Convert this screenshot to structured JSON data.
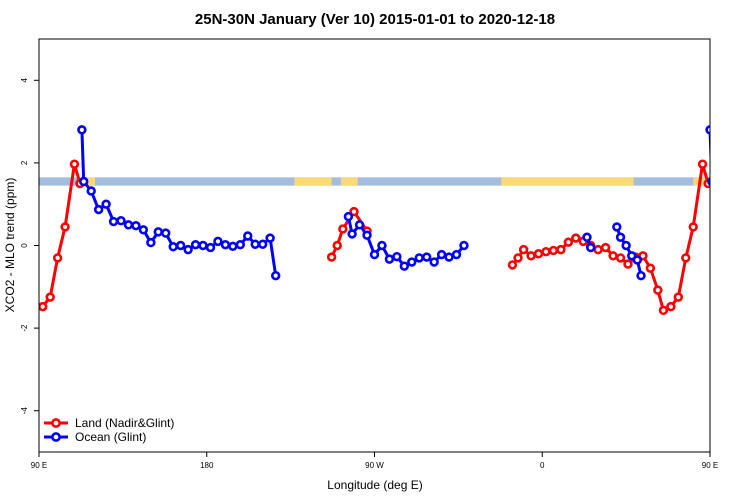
{
  "chart_data": {
    "type": "line",
    "title": "25N-30N January (Ver 10)   2015-01-01 to 2020-12-18",
    "xlabel": "Longitude (deg E)",
    "ylabel": "XCO2 - MLO trend (ppm)",
    "xlim": [
      90,
      450
    ],
    "ylim": [
      -5,
      5
    ],
    "x_ticks": [
      {
        "value": 90,
        "label": "90 E"
      },
      {
        "value": 180,
        "label": "180"
      },
      {
        "value": 270,
        "label": "90 W"
      },
      {
        "value": 360,
        "label": "0"
      },
      {
        "value": 450,
        "label": "90 E"
      },
      {
        "value": 540,
        "label": "180"
      }
    ],
    "y_ticks": [
      -4,
      -2,
      0,
      2,
      4
    ],
    "grid": false,
    "legend_position": "bottom-left",
    "land_band": {
      "y_range": [
        1.45,
        1.65
      ],
      "ocean_color": "#a3bedc",
      "land_color": "#fbd974",
      "land_segments": [
        [
          111,
          120
        ],
        [
          227,
          247
        ],
        [
          252,
          261
        ],
        [
          338,
          409
        ],
        [
          441,
          459
        ]
      ]
    },
    "series": [
      {
        "name": "Land (Nadir&Glint)",
        "color": "#ff0000",
        "segments": [
          [
            [
              92,
              -1.48
            ],
            [
              96,
              -1.25
            ],
            [
              100,
              -0.3
            ],
            [
              104,
              0.45
            ],
            [
              109,
              1.97
            ],
            [
              112,
              1.5
            ]
          ],
          [
            [
              247,
              -0.28
            ],
            [
              250,
              0.0
            ],
            [
              253,
              0.4
            ],
            [
              259,
              0.82
            ],
            [
              266,
              0.35
            ]
          ],
          [
            [
              344,
              -0.47
            ],
            [
              347,
              -0.3
            ],
            [
              350,
              -0.1
            ],
            [
              354,
              -0.25
            ],
            [
              358,
              -0.2
            ],
            [
              362,
              -0.15
            ],
            [
              366,
              -0.12
            ],
            [
              370,
              -0.1
            ],
            [
              374,
              0.08
            ],
            [
              378,
              0.18
            ],
            [
              382,
              0.1
            ],
            [
              386,
              0.0
            ],
            [
              390,
              -0.1
            ],
            [
              394,
              -0.05
            ],
            [
              398,
              -0.25
            ],
            [
              402,
              -0.3
            ],
            [
              406,
              -0.45
            ],
            [
              410,
              -0.28
            ],
            [
              414,
              -0.25
            ],
            [
              418,
              -0.55
            ],
            [
              422,
              -1.08
            ],
            [
              425,
              -1.57
            ],
            [
              429,
              -1.48
            ],
            [
              433,
              -1.25
            ],
            [
              437,
              -0.3
            ],
            [
              441,
              0.45
            ],
            [
              446,
              1.97
            ],
            [
              449,
              1.5
            ]
          ]
        ]
      },
      {
        "name": "Ocean (Glint)",
        "color": "#0000ff",
        "segments": [
          [
            [
              113,
              2.8
            ],
            [
              114,
              1.55
            ],
            [
              118,
              1.32
            ],
            [
              122,
              0.87
            ],
            [
              126,
              1.0
            ],
            [
              130,
              0.58
            ],
            [
              134,
              0.6
            ],
            [
              138,
              0.5
            ],
            [
              142,
              0.48
            ],
            [
              146,
              0.38
            ],
            [
              150,
              0.07
            ],
            [
              154,
              0.33
            ],
            [
              158,
              0.3
            ],
            [
              162,
              -0.03
            ],
            [
              166,
              0.0
            ],
            [
              170,
              -0.1
            ],
            [
              174,
              0.02
            ],
            [
              178,
              0.0
            ],
            [
              182,
              -0.05
            ],
            [
              186,
              0.1
            ],
            [
              190,
              0.02
            ],
            [
              194,
              -0.02
            ],
            [
              198,
              0.02
            ],
            [
              202,
              0.23
            ],
            [
              206,
              0.03
            ],
            [
              210,
              0.03
            ],
            [
              214,
              0.18
            ],
            [
              217,
              -0.73
            ]
          ],
          [
            [
              256,
              0.7
            ],
            [
              258,
              0.28
            ],
            [
              262,
              0.5
            ],
            [
              266,
              0.25
            ],
            [
              270,
              -0.22
            ],
            [
              274,
              0.0
            ],
            [
              278,
              -0.33
            ],
            [
              282,
              -0.27
            ],
            [
              286,
              -0.5
            ],
            [
              290,
              -0.4
            ],
            [
              294,
              -0.3
            ],
            [
              298,
              -0.28
            ],
            [
              302,
              -0.4
            ],
            [
              306,
              -0.22
            ],
            [
              310,
              -0.28
            ],
            [
              314,
              -0.22
            ],
            [
              318,
              0.0
            ]
          ],
          [
            [
              384,
              0.2
            ],
            [
              386,
              -0.05
            ]
          ],
          [
            [
              400,
              0.45
            ],
            [
              402,
              0.2
            ],
            [
              405,
              0.0
            ],
            [
              408,
              -0.25
            ],
            [
              411,
              -0.35
            ],
            [
              413,
              -0.73
            ]
          ],
          [
            [
              450,
              2.8
            ],
            [
              451,
              1.55
            ],
            [
              455,
              1.32
            ],
            [
              459,
              0.87
            ],
            [
              463,
              1.0
            ],
            [
              467,
              0.58
            ],
            [
              471,
              0.6
            ],
            [
              475,
              0.5
            ],
            [
              479,
              0.48
            ],
            [
              483,
              0.38
            ],
            [
              487,
              0.07
            ],
            [
              491,
              0.33
            ],
            [
              495,
              0.3
            ]
          ]
        ]
      }
    ]
  }
}
